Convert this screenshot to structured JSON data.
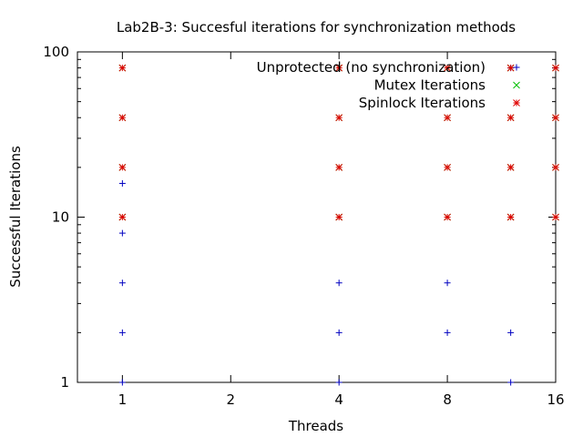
{
  "chart_data": {
    "type": "scatter",
    "title": "Lab2B-3: Succesful iterations for synchronization methods",
    "xlabel": "Threads",
    "ylabel": "Successful Iterations",
    "x_scale": "log2",
    "y_scale": "log10",
    "xlim": [
      0.75,
      16
    ],
    "ylim": [
      1,
      100
    ],
    "x_ticks": [
      "1",
      "2",
      "4",
      "8",
      "16"
    ],
    "y_ticks": [
      "1",
      "10",
      "100"
    ],
    "grid": false,
    "legend_position": "top-right",
    "series": [
      {
        "name": "Unprotected (no synchronization)",
        "marker": "+",
        "color": "#0000c0",
        "points": [
          [
            1,
            2
          ],
          [
            1,
            4
          ],
          [
            1,
            8
          ],
          [
            1,
            16
          ],
          [
            1,
            1
          ],
          [
            4,
            2
          ],
          [
            4,
            4
          ],
          [
            4,
            1
          ],
          [
            8,
            2
          ],
          [
            8,
            4
          ],
          [
            12,
            2
          ],
          [
            12,
            1
          ],
          [
            12,
            80
          ],
          [
            16,
            10
          ],
          [
            16,
            80
          ]
        ]
      },
      {
        "name": "Mutex Iterations",
        "marker": "x",
        "color": "#00c000",
        "points": [
          [
            1,
            10
          ],
          [
            1,
            20
          ],
          [
            1,
            40
          ],
          [
            1,
            80
          ],
          [
            4,
            10
          ],
          [
            4,
            20
          ],
          [
            4,
            40
          ],
          [
            4,
            80
          ],
          [
            8,
            10
          ],
          [
            8,
            20
          ],
          [
            8,
            40
          ],
          [
            8,
            80
          ],
          [
            12,
            10
          ],
          [
            12,
            20
          ],
          [
            12,
            40
          ],
          [
            12,
            80
          ],
          [
            16,
            10
          ],
          [
            16,
            20
          ],
          [
            16,
            40
          ],
          [
            16,
            80
          ]
        ]
      },
      {
        "name": "Spinlock Iterations",
        "marker": "*",
        "color": "#e00000",
        "points": [
          [
            1,
            10
          ],
          [
            1,
            20
          ],
          [
            1,
            40
          ],
          [
            1,
            80
          ],
          [
            4,
            10
          ],
          [
            4,
            20
          ],
          [
            4,
            40
          ],
          [
            4,
            80
          ],
          [
            8,
            10
          ],
          [
            8,
            20
          ],
          [
            8,
            40
          ],
          [
            8,
            80
          ],
          [
            12,
            10
          ],
          [
            12,
            20
          ],
          [
            12,
            40
          ],
          [
            12,
            80
          ],
          [
            16,
            10
          ],
          [
            16,
            20
          ],
          [
            16,
            40
          ],
          [
            16,
            80
          ]
        ]
      }
    ]
  }
}
